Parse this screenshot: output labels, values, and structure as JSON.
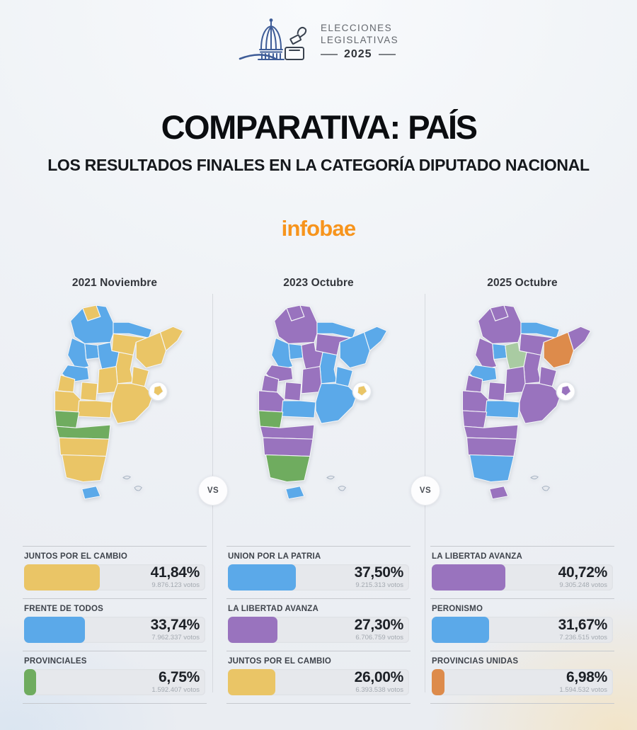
{
  "header": {
    "line1": "ELECCIONES",
    "line2": "LEGISLATIVAS",
    "year": "2025"
  },
  "title": {
    "bold": "COMPARATIVA:",
    "regular": "PAÍS"
  },
  "subtitle": "LOS RESULTADOS FINALES EN LA CATEGORÍA DIPUTADO NACIONAL",
  "brand": "infobae",
  "vs_label": "VS",
  "colors": {
    "yellow": "#EAC566",
    "blue": "#5BA9E9",
    "green": "#6FAC5F",
    "lightgreen": "#A9CBA2",
    "purple": "#9973BE",
    "orange": "#DD8B4B",
    "brand_orange": "#F7941D",
    "track_gray": "#E6E8EC"
  },
  "columns": [
    {
      "year_label": "2021 Noviembre",
      "map": {
        "jujuy": "yellow",
        "salta": "blue",
        "formosa": "blue",
        "chaco": "yellow",
        "misiones": "yellow",
        "corrientes": "yellow",
        "tucuman": "blue",
        "santiago": "blue",
        "catamarca": "blue",
        "la_rioja": "blue",
        "santa_fe": "yellow",
        "entre_rios": "yellow",
        "cordoba": "yellow",
        "san_juan": "yellow",
        "san_luis": "yellow",
        "mendoza": "yellow",
        "la_pampa": "yellow",
        "buenos_aires": "yellow",
        "caba": "yellow",
        "neuquen": "green",
        "rio_negro": "green",
        "chubut": "yellow",
        "santa_cruz": "yellow",
        "tierra_del_fuego": "blue"
      },
      "results": [
        {
          "party": "JUNTOS POR EL CAMBIO",
          "percent": "41,84%",
          "percent_value": 41.84,
          "votes": "9.876.123 votos",
          "color": "yellow"
        },
        {
          "party": "FRENTE DE TODOS",
          "percent": "33,74%",
          "percent_value": 33.74,
          "votes": "7.962.337 votos",
          "color": "blue"
        },
        {
          "party": "PROVINCIALES",
          "percent": "6,75%",
          "percent_value": 6.75,
          "votes": "1.592.407 votos",
          "color": "green"
        }
      ]
    },
    {
      "year_label": "2023 Octubre",
      "map": {
        "jujuy": "purple",
        "salta": "purple",
        "formosa": "blue",
        "chaco": "purple",
        "misiones": "blue",
        "corrientes": "blue",
        "tucuman": "blue",
        "santiago": "purple",
        "catamarca": "blue",
        "la_rioja": "purple",
        "santa_fe": "blue",
        "entre_rios": "blue",
        "cordoba": "purple",
        "san_juan": "purple",
        "san_luis": "purple",
        "mendoza": "purple",
        "la_pampa": "blue",
        "buenos_aires": "blue",
        "caba": "yellow",
        "neuquen": "green",
        "rio_negro": "purple",
        "chubut": "purple",
        "santa_cruz": "green",
        "tierra_del_fuego": "blue"
      },
      "results": [
        {
          "party": "UNION POR LA PATRIA",
          "percent": "37,50%",
          "percent_value": 37.5,
          "votes": "9.215.313 votos",
          "color": "blue"
        },
        {
          "party": "LA LIBERTAD AVANZA",
          "percent": "27,30%",
          "percent_value": 27.3,
          "votes": "6.706.759 votos",
          "color": "purple"
        },
        {
          "party": "JUNTOS POR EL CAMBIO",
          "percent": "26,00%",
          "percent_value": 26.0,
          "votes": "6.393.538 votos",
          "color": "yellow"
        }
      ]
    },
    {
      "year_label": "2025 Octubre",
      "map": {
        "jujuy": "purple",
        "salta": "purple",
        "formosa": "blue",
        "chaco": "purple",
        "misiones": "purple",
        "corrientes": "orange",
        "tucuman": "blue",
        "santiago": "lightgreen",
        "catamarca": "purple",
        "la_rioja": "blue",
        "santa_fe": "purple",
        "entre_rios": "purple",
        "cordoba": "purple",
        "san_juan": "purple",
        "san_luis": "purple",
        "mendoza": "purple",
        "la_pampa": "blue",
        "buenos_aires": "purple",
        "caba": "purple",
        "neuquen": "purple",
        "rio_negro": "purple",
        "chubut": "purple",
        "santa_cruz": "blue",
        "tierra_del_fuego": "purple"
      },
      "results": [
        {
          "party": "LA LIBERTAD AVANZA",
          "percent": "40,72%",
          "percent_value": 40.72,
          "votes": "9.305.248 votos",
          "color": "purple"
        },
        {
          "party": "PERONISMO",
          "percent": "31,67%",
          "percent_value": 31.67,
          "votes": "7.236.515 votos",
          "color": "blue"
        },
        {
          "party": "PROVINCIAS UNIDAS",
          "percent": "6,98%",
          "percent_value": 6.98,
          "votes": "1.594.532 votos",
          "color": "orange"
        }
      ]
    }
  ],
  "chart_data": [
    {
      "type": "bar",
      "title": "2021 Noviembre",
      "orientation": "horizontal",
      "categories": [
        "JUNTOS POR EL CAMBIO",
        "FRENTE DE TODOS",
        "PROVINCIALES"
      ],
      "values": [
        41.84,
        33.74,
        6.75
      ],
      "value_unit": "%",
      "votes": [
        9876123,
        7962337,
        1592407
      ],
      "bar_colors": [
        "#EAC566",
        "#5BA9E9",
        "#6FAC5F"
      ],
      "xlim": [
        0,
        100
      ],
      "legend_position": "none"
    },
    {
      "type": "bar",
      "title": "2023 Octubre",
      "orientation": "horizontal",
      "categories": [
        "UNION POR LA PATRIA",
        "LA LIBERTAD AVANZA",
        "JUNTOS POR EL CAMBIO"
      ],
      "values": [
        37.5,
        27.3,
        26.0
      ],
      "value_unit": "%",
      "votes": [
        9215313,
        6706759,
        6393538
      ],
      "bar_colors": [
        "#5BA9E9",
        "#9973BE",
        "#EAC566"
      ],
      "xlim": [
        0,
        100
      ],
      "legend_position": "none"
    },
    {
      "type": "bar",
      "title": "2025 Octubre",
      "orientation": "horizontal",
      "categories": [
        "LA LIBERTAD AVANZA",
        "PERONISMO",
        "PROVINCIAS UNIDAS"
      ],
      "values": [
        40.72,
        31.67,
        6.98
      ],
      "value_unit": "%",
      "votes": [
        9305248,
        7236515,
        1594532
      ],
      "bar_colors": [
        "#9973BE",
        "#5BA9E9",
        "#DD8B4B"
      ],
      "xlim": [
        0,
        100
      ],
      "legend_position": "none"
    }
  ]
}
